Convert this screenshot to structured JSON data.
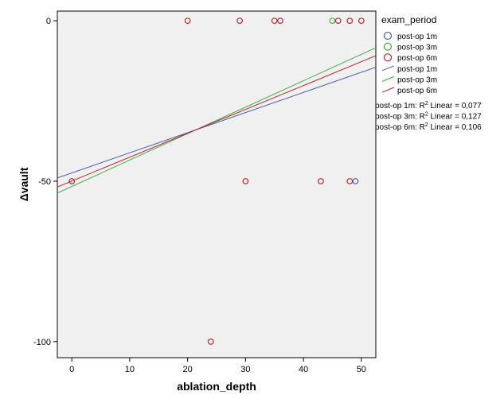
{
  "chart_data": {
    "type": "scatter",
    "xlabel": "ablation_depth",
    "ylabel": "Δvault",
    "xlim": [
      -2.5,
      52.5
    ],
    "ylim": [
      -105,
      3
    ],
    "x_ticks": [
      0,
      10,
      20,
      30,
      40,
      50
    ],
    "y_ticks": [
      0,
      -50,
      -100
    ],
    "grid": false,
    "plot_background": "#f0f0f0",
    "legend": {
      "title": "exam_period",
      "placement": "right",
      "entries": [
        {
          "label": "post-op 1m",
          "kind": "marker",
          "color": "#4a5fb0"
        },
        {
          "label": "post-op 3m",
          "kind": "marker",
          "color": "#3cb043"
        },
        {
          "label": "post-op 6m",
          "kind": "marker",
          "color": "#c0262c"
        },
        {
          "label": "post-op 1m",
          "kind": "line",
          "color": "#4a5fb0"
        },
        {
          "label": "post-op 3m",
          "kind": "line",
          "color": "#3cb043"
        },
        {
          "label": "post-op 6m",
          "kind": "line",
          "color": "#d9232a"
        }
      ]
    },
    "r2_labels": [
      {
        "prefix": "post-op 1m: R",
        "sup": "2",
        "suffix": " Linear = 0,077"
      },
      {
        "prefix": "post-op 3m: R",
        "sup": "2",
        "suffix": " Linear = 0,127"
      },
      {
        "prefix": "post-op 6m: R",
        "sup": "2",
        "suffix": " Linear = 0,106"
      }
    ],
    "series": [
      {
        "name": "post-op 1m",
        "color": "#4a5fb0",
        "points": [
          [
            49,
            -50
          ]
        ],
        "fit": {
          "x": [
            -2.5,
            52.5
          ],
          "y": [
            -49.0,
            -14.5
          ]
        }
      },
      {
        "name": "post-op 3m",
        "color": "#3cb043",
        "points": [
          [
            45,
            0
          ]
        ],
        "fit": {
          "x": [
            -2.5,
            52.5
          ],
          "y": [
            -53.7,
            -8.4
          ]
        }
      },
      {
        "name": "post-op 6m",
        "color": "#c0262c",
        "points": [
          [
            20,
            0
          ],
          [
            29,
            0
          ],
          [
            35,
            0
          ],
          [
            36,
            0
          ],
          [
            46,
            0
          ],
          [
            48,
            0
          ],
          [
            50,
            0
          ],
          [
            0,
            -50
          ],
          [
            30,
            -50
          ],
          [
            43,
            -50
          ],
          [
            48,
            -50
          ],
          [
            24,
            -100
          ]
        ],
        "fit": {
          "x": [
            -2.5,
            52.5
          ],
          "y": [
            -51.8,
            -10.9
          ]
        }
      }
    ]
  }
}
